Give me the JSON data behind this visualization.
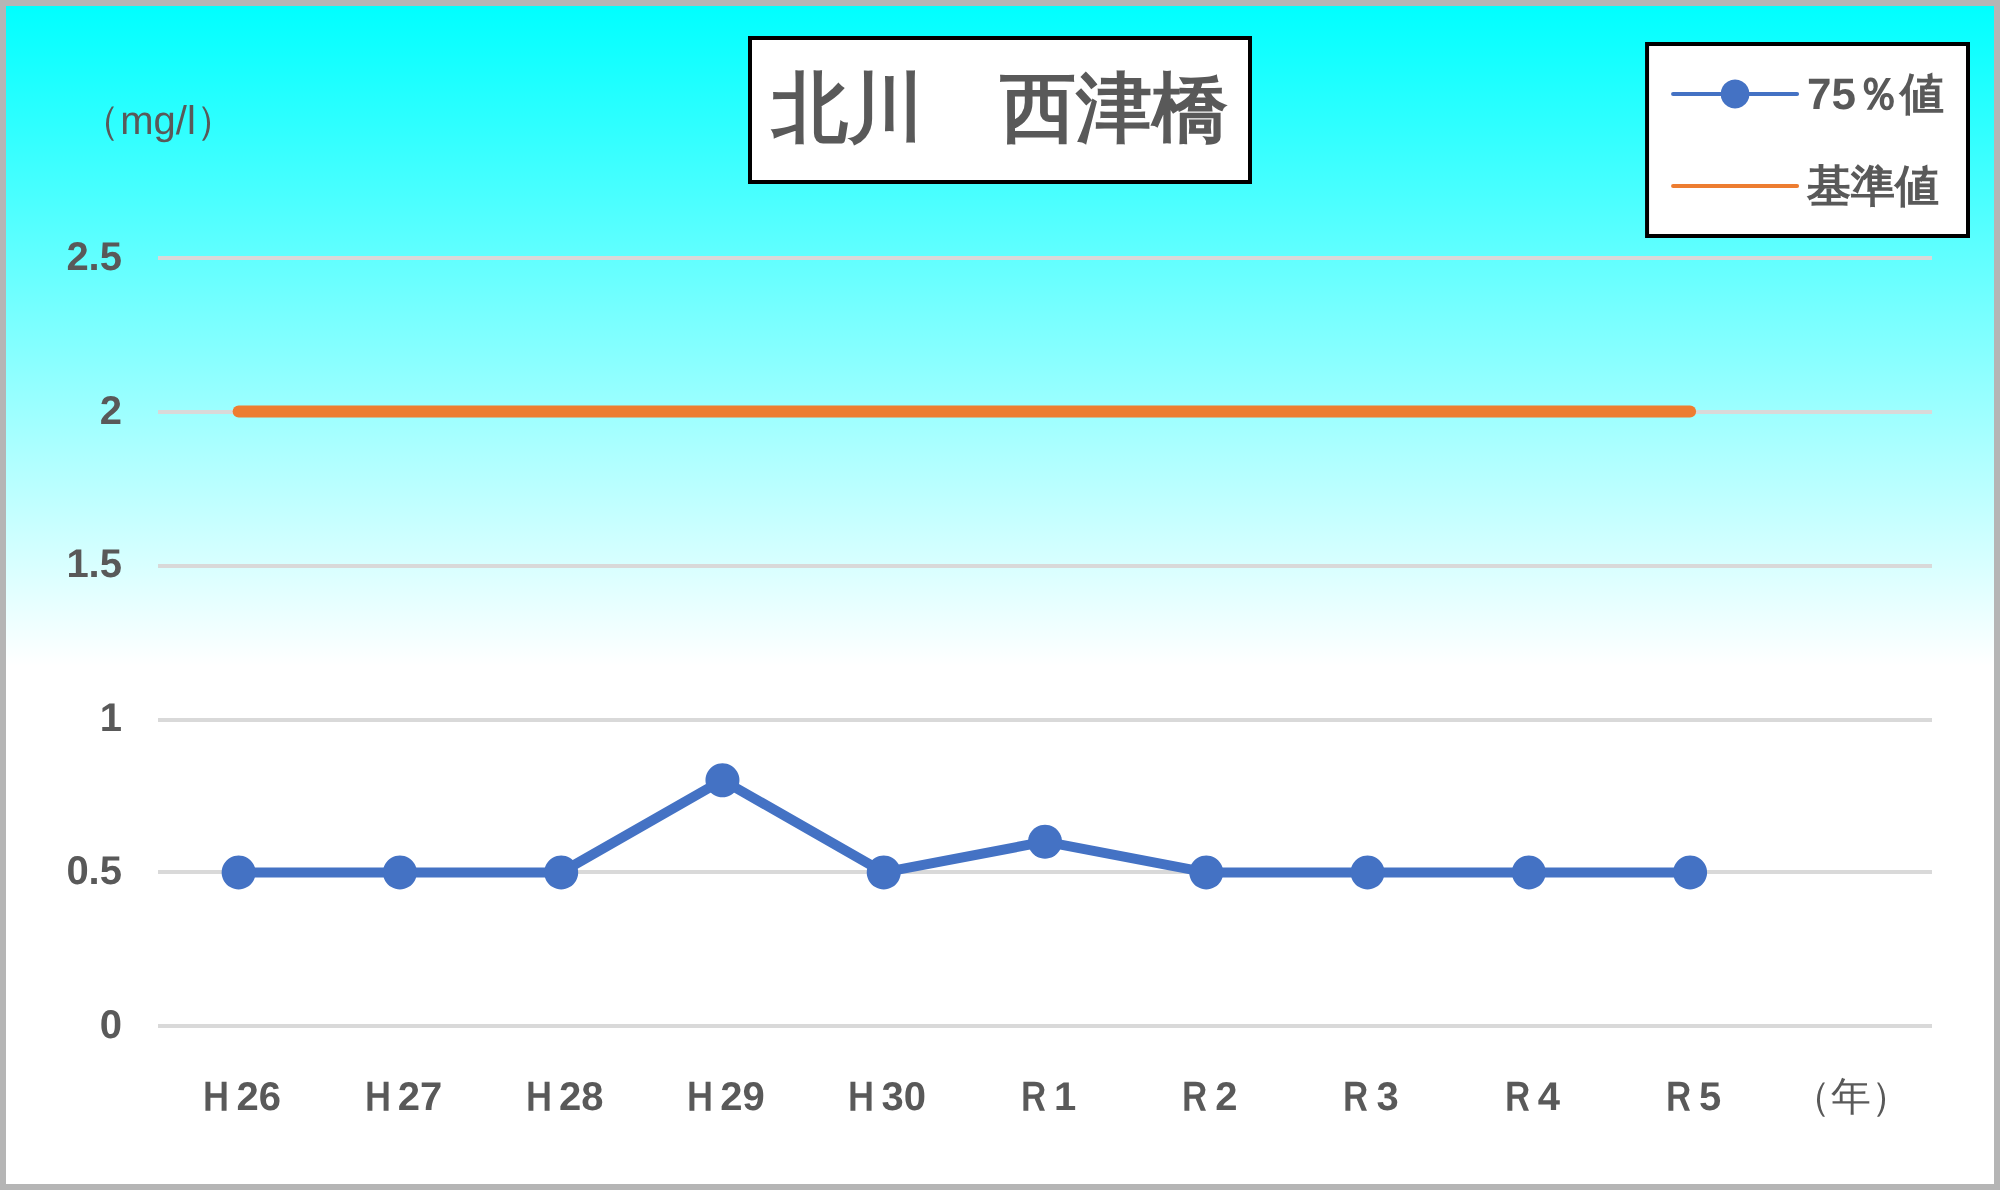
{
  "chart_data": {
    "type": "line",
    "title": "北川　西津橋",
    "ylabel": "（mg/l）",
    "xlabel": "（年）",
    "categories": [
      "Ｈ26",
      "Ｈ27",
      "Ｈ28",
      "Ｈ29",
      "Ｈ30",
      "Ｒ1",
      "Ｒ2",
      "Ｒ3",
      "Ｒ4",
      "Ｒ5"
    ],
    "series": [
      {
        "name": "75％値",
        "color": "#4472c4",
        "marker": "circle",
        "values": [
          0.5,
          0.5,
          0.5,
          0.8,
          0.5,
          0.6,
          0.5,
          0.5,
          0.5,
          0.5
        ]
      },
      {
        "name": "基準値",
        "color": "#ed7d31",
        "marker": "none",
        "values": [
          2,
          2,
          2,
          2,
          2,
          2,
          2,
          2,
          2,
          2
        ]
      }
    ],
    "ylim": [
      0,
      2.5
    ],
    "yticks": [
      0,
      0.5,
      1,
      1.5,
      2,
      2.5
    ],
    "grid": "y",
    "legend": "top right",
    "line_style": "solid"
  }
}
